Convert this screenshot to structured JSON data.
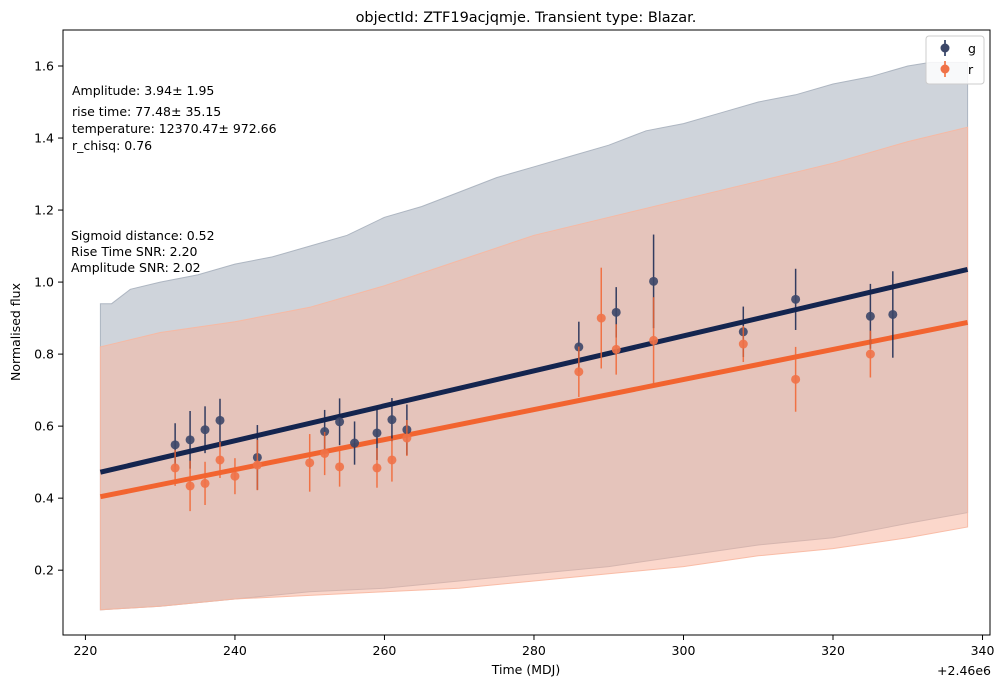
{
  "chart_data": {
    "type": "line",
    "title": "objectId: ZTF19acjqmje. Transient type: Blazar.",
    "xlabel": "Time (MDJ)",
    "ylabel": "Normalised flux",
    "x_offset_label": "+2.46e6",
    "xlim": [
      217,
      341
    ],
    "ylim": [
      0.02,
      1.7
    ],
    "xticks": [
      220,
      240,
      260,
      280,
      300,
      320,
      340
    ],
    "yticks": [
      0.2,
      0.4,
      0.6,
      0.8,
      1.0,
      1.2,
      1.4,
      1.6
    ],
    "xtick_labels": [
      "220",
      "240",
      "260",
      "280",
      "300",
      "320",
      "340"
    ],
    "ytick_labels": [
      "0.2",
      "0.4",
      "0.6",
      "0.8",
      "1.0",
      "1.2",
      "1.4",
      "1.6"
    ],
    "legend_position": "top-right",
    "series": [
      {
        "name": "g",
        "color": "#14254f",
        "marker_color": "#3c4769",
        "band_color": "#a7b0bd",
        "fit": {
          "x": [
            222,
            338
          ],
          "y": [
            0.472,
            1.035
          ]
        },
        "band_upper": {
          "x": [
            222,
            223.5,
            226,
            230,
            235,
            240,
            245,
            250,
            255,
            260,
            265,
            270,
            275,
            280,
            285,
            290,
            295,
            300,
            305,
            310,
            315,
            320,
            325,
            330,
            333,
            338
          ],
          "y": [
            0.94,
            0.94,
            0.98,
            1.0,
            1.02,
            1.05,
            1.07,
            1.1,
            1.13,
            1.18,
            1.21,
            1.25,
            1.29,
            1.32,
            1.35,
            1.38,
            1.42,
            1.44,
            1.47,
            1.5,
            1.52,
            1.55,
            1.57,
            1.6,
            1.61,
            1.61
          ]
        },
        "band_lower": {
          "x": [
            222,
            230,
            240,
            250,
            260,
            270,
            280,
            290,
            300,
            310,
            320,
            330,
            338
          ],
          "y": [
            0.09,
            0.1,
            0.12,
            0.14,
            0.15,
            0.17,
            0.19,
            0.21,
            0.24,
            0.27,
            0.29,
            0.33,
            0.36
          ]
        },
        "points": [
          {
            "x": 232,
            "y": 0.548,
            "err": 0.06
          },
          {
            "x": 234,
            "y": 0.562,
            "err": 0.08
          },
          {
            "x": 236,
            "y": 0.59,
            "err": 0.065
          },
          {
            "x": 238,
            "y": 0.616,
            "err": 0.06
          },
          {
            "x": 243,
            "y": 0.513,
            "err": 0.09
          },
          {
            "x": 252,
            "y": 0.585,
            "err": 0.06
          },
          {
            "x": 254,
            "y": 0.612,
            "err": 0.065
          },
          {
            "x": 256,
            "y": 0.553,
            "err": 0.06
          },
          {
            "x": 259,
            "y": 0.581,
            "err": 0.075
          },
          {
            "x": 261,
            "y": 0.618,
            "err": 0.06
          },
          {
            "x": 263,
            "y": 0.59,
            "err": 0.07
          },
          {
            "x": 286,
            "y": 0.82,
            "err": 0.07
          },
          {
            "x": 291,
            "y": 0.916,
            "err": 0.07
          },
          {
            "x": 296,
            "y": 1.002,
            "err": 0.13
          },
          {
            "x": 308,
            "y": 0.862,
            "err": 0.07
          },
          {
            "x": 315,
            "y": 0.952,
            "err": 0.085
          },
          {
            "x": 325,
            "y": 0.905,
            "err": 0.09
          },
          {
            "x": 328,
            "y": 0.91,
            "err": 0.12
          }
        ]
      },
      {
        "name": "r",
        "color": "#f26430",
        "marker_color": "#f07248",
        "band_color": "#f8b7a0",
        "fit": {
          "x": [
            222,
            338
          ],
          "y": [
            0.404,
            0.888
          ]
        },
        "band_upper": {
          "x": [
            222,
            224,
            230,
            240,
            250,
            260,
            270,
            280,
            290,
            300,
            310,
            320,
            330,
            338
          ],
          "y": [
            0.82,
            0.83,
            0.86,
            0.89,
            0.93,
            0.99,
            1.06,
            1.13,
            1.18,
            1.23,
            1.28,
            1.33,
            1.39,
            1.43
          ]
        },
        "band_lower": {
          "x": [
            222,
            230,
            240,
            250,
            260,
            270,
            280,
            290,
            300,
            310,
            320,
            330,
            338
          ],
          "y": [
            0.09,
            0.1,
            0.12,
            0.13,
            0.14,
            0.15,
            0.17,
            0.19,
            0.21,
            0.24,
            0.26,
            0.29,
            0.32
          ]
        },
        "points": [
          {
            "x": 232,
            "y": 0.484,
            "err": 0.05
          },
          {
            "x": 234,
            "y": 0.434,
            "err": 0.07
          },
          {
            "x": 236,
            "y": 0.441,
            "err": 0.06
          },
          {
            "x": 238,
            "y": 0.506,
            "err": 0.05
          },
          {
            "x": 240,
            "y": 0.461,
            "err": 0.05
          },
          {
            "x": 243,
            "y": 0.492,
            "err": 0.07
          },
          {
            "x": 250,
            "y": 0.498,
            "err": 0.08
          },
          {
            "x": 252,
            "y": 0.524,
            "err": 0.06
          },
          {
            "x": 254,
            "y": 0.487,
            "err": 0.055
          },
          {
            "x": 259,
            "y": 0.484,
            "err": 0.055
          },
          {
            "x": 261,
            "y": 0.506,
            "err": 0.06
          },
          {
            "x": 263,
            "y": 0.567,
            "err": 0.05
          },
          {
            "x": 286,
            "y": 0.751,
            "err": 0.07
          },
          {
            "x": 289,
            "y": 0.9,
            "err": 0.14
          },
          {
            "x": 291,
            "y": 0.813,
            "err": 0.07
          },
          {
            "x": 296,
            "y": 0.838,
            "err": 0.12
          },
          {
            "x": 308,
            "y": 0.828,
            "err": 0.05
          },
          {
            "x": 315,
            "y": 0.73,
            "err": 0.09
          },
          {
            "x": 325,
            "y": 0.8,
            "err": 0.065
          }
        ]
      }
    ],
    "annotations_top": [
      "Amplitude: 3.94± 1.95",
      "rise time: 77.48± 35.15",
      "temperature: 12370.47± 972.66",
      "r_chisq: 0.76"
    ],
    "annotations_mid": [
      "Sigmoid distance: 0.52",
      "Rise Time SNR: 2.20",
      "Amplitude SNR: 2.02"
    ]
  }
}
